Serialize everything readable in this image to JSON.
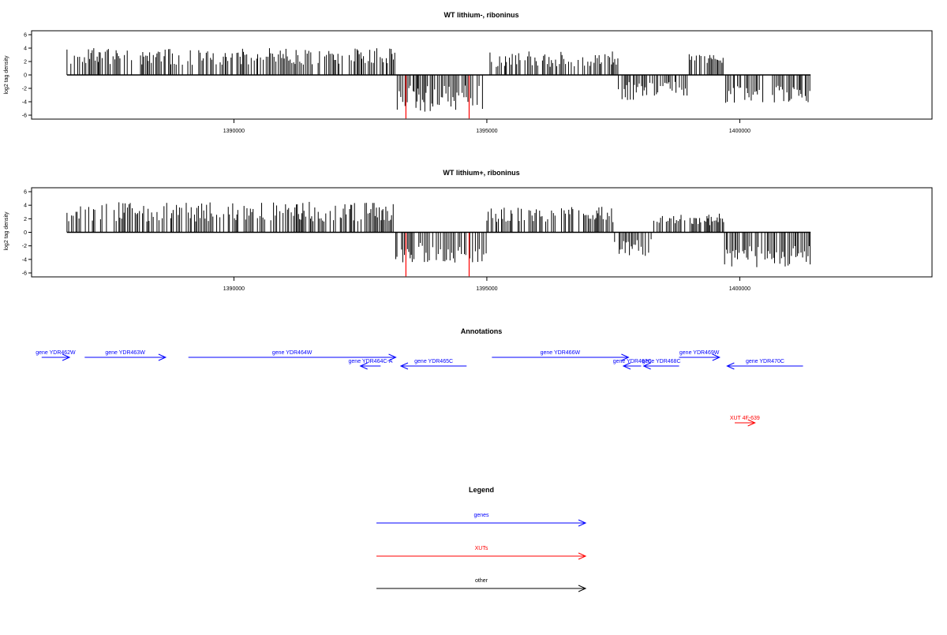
{
  "chart_data": [
    {
      "type": "bar",
      "title": "WT lithium-, riboninus",
      "ylabel": "log2 tag density",
      "xlim": [
        1386000,
        1403800
      ],
      "ylim": [
        -6,
        6
      ],
      "x_ticks": [
        1390000,
        1395000,
        1400000
      ],
      "x_tick_labels": [
        "1390000",
        "1395000",
        "1400000"
      ],
      "y_ticks": [
        -6,
        -4,
        -2,
        0,
        2,
        4,
        6
      ],
      "y_tick_labels": [
        "-6",
        "-4",
        "-2",
        "0",
        "2",
        "4",
        "6"
      ],
      "bar_color": "#000000",
      "highlight_color": "#ff0000",
      "segments": [
        {
          "from": 1386700,
          "to": 1393200,
          "sign": 1,
          "min": 1.5,
          "max": 4.0
        },
        {
          "from": 1393200,
          "to": 1395000,
          "sign": -1,
          "min": 1.5,
          "max": 5.5
        },
        {
          "from": 1395000,
          "to": 1397600,
          "sign": 1,
          "min": 1.2,
          "max": 3.5
        },
        {
          "from": 1397600,
          "to": 1399000,
          "sign": -1,
          "min": 1.0,
          "max": 3.8
        },
        {
          "from": 1399000,
          "to": 1399700,
          "sign": 1,
          "min": 1.5,
          "max": 3.2
        },
        {
          "from": 1399700,
          "to": 1401400,
          "sign": -1,
          "min": 1.5,
          "max": 4.2
        }
      ],
      "highlights": [
        {
          "x": 1393400,
          "value": -6.5
        },
        {
          "x": 1394650,
          "value": -6.5
        }
      ],
      "seed": 7
    },
    {
      "type": "bar",
      "title": "WT lithium+, riboninus",
      "ylabel": "log2 tag density",
      "xlim": [
        1386000,
        1403800
      ],
      "ylim": [
        -6,
        6
      ],
      "x_ticks": [
        1390000,
        1395000,
        1400000
      ],
      "x_tick_labels": [
        "1390000",
        "1395000",
        "1400000"
      ],
      "y_ticks": [
        -6,
        -4,
        -2,
        0,
        2,
        4,
        6
      ],
      "y_tick_labels": [
        "-6",
        "-4",
        "-2",
        "0",
        "2",
        "4",
        "6"
      ],
      "bar_color": "#000000",
      "highlight_color": "#ff0000",
      "segments": [
        {
          "from": 1386700,
          "to": 1393200,
          "sign": 1,
          "min": 1.5,
          "max": 4.5
        },
        {
          "from": 1393200,
          "to": 1395000,
          "sign": -1,
          "min": 1.5,
          "max": 4.5
        },
        {
          "from": 1395000,
          "to": 1397500,
          "sign": 1,
          "min": 1.5,
          "max": 3.8
        },
        {
          "from": 1397500,
          "to": 1398300,
          "sign": -1,
          "min": 1.0,
          "max": 3.5
        },
        {
          "from": 1398300,
          "to": 1399700,
          "sign": 1,
          "min": 1.0,
          "max": 2.8
        },
        {
          "from": 1399700,
          "to": 1401400,
          "sign": -1,
          "min": 2.0,
          "max": 5.2
        }
      ],
      "highlights": [
        {
          "x": 1393400,
          "value": -6.5
        },
        {
          "x": 1394650,
          "value": -6.5
        }
      ],
      "seed": 13
    }
  ],
  "annotations": {
    "title": "Annotations",
    "features": [
      {
        "label": "gene YDR462W",
        "start": 1386200,
        "end": 1386750,
        "strand": "+",
        "kind": "gene",
        "row": 0
      },
      {
        "label": "gene YDR463W",
        "start": 1387050,
        "end": 1388650,
        "strand": "+",
        "kind": "gene",
        "row": 0
      },
      {
        "label": "gene YDR464W",
        "start": 1389100,
        "end": 1393200,
        "strand": "+",
        "kind": "gene",
        "row": 0
      },
      {
        "label": "gene YDR464C-A",
        "start": 1392500,
        "end": 1392900,
        "strand": "-",
        "kind": "gene",
        "row": 1
      },
      {
        "label": "gene YDR465C",
        "start": 1393300,
        "end": 1394600,
        "strand": "-",
        "kind": "gene",
        "row": 1
      },
      {
        "label": "gene YDR466W",
        "start": 1395100,
        "end": 1397800,
        "strand": "+",
        "kind": "gene",
        "row": 0
      },
      {
        "label": "gene YDR467C",
        "start": 1397700,
        "end": 1398050,
        "strand": "-",
        "kind": "gene",
        "row": 1
      },
      {
        "label": "gene YDR468C",
        "start": 1398100,
        "end": 1398800,
        "strand": "-",
        "kind": "gene",
        "row": 1
      },
      {
        "label": "gene YDR469W",
        "start": 1398800,
        "end": 1399600,
        "strand": "+",
        "kind": "gene",
        "row": 0
      },
      {
        "label": "gene YDR470C",
        "start": 1399750,
        "end": 1401250,
        "strand": "-",
        "kind": "gene",
        "row": 1
      },
      {
        "label": "XUT 4F-639",
        "start": 1399900,
        "end": 1400300,
        "strand": "+",
        "kind": "xut",
        "row": 3
      }
    ]
  },
  "legend": {
    "title": "Legend",
    "items": [
      {
        "label": "genes",
        "color": "#0000ff"
      },
      {
        "label": "XUTs",
        "color": "#ff0000"
      },
      {
        "label": "other",
        "color": "#000000"
      }
    ]
  },
  "colors": {
    "gene": "#0000ff",
    "xut": "#ff0000",
    "axis": "#000000"
  }
}
